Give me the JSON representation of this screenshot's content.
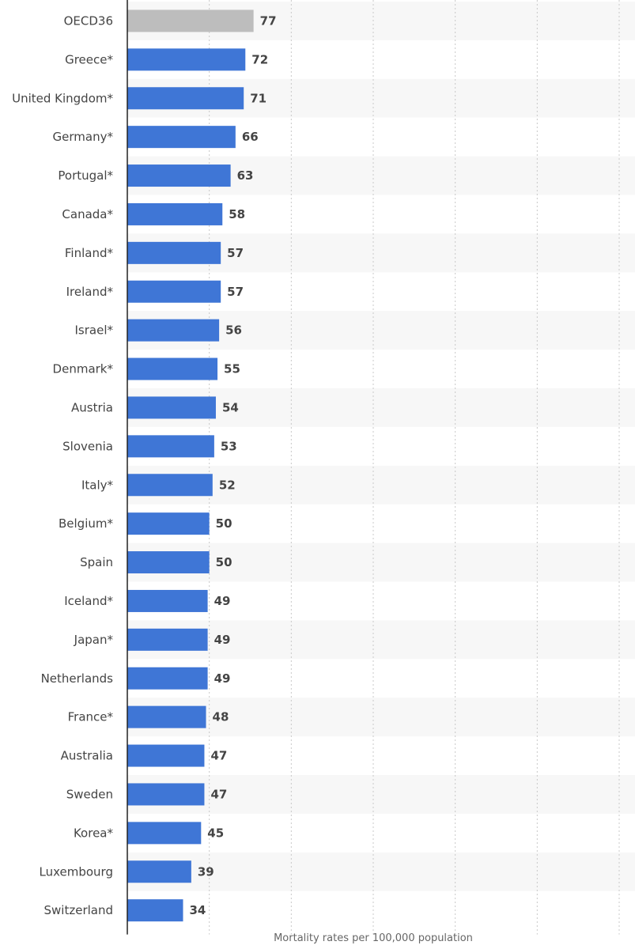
{
  "chart_data": {
    "type": "bar",
    "orientation": "horizontal",
    "categories": [
      "OECD36",
      "Greece*",
      "United Kingdom*",
      "Germany*",
      "Portugal*",
      "Canada*",
      "Finland*",
      "Ireland*",
      "Israel*",
      "Denmark*",
      "Austria",
      "Slovenia",
      "Italy*",
      "Belgium*",
      "Spain",
      "Iceland*",
      "Japan*",
      "Netherlands",
      "France*",
      "Australia",
      "Sweden",
      "Korea*",
      "Luxembourg",
      "Switzerland"
    ],
    "values": [
      77,
      72,
      71,
      66,
      63,
      58,
      57,
      57,
      56,
      55,
      54,
      53,
      52,
      50,
      50,
      49,
      49,
      49,
      48,
      47,
      47,
      45,
      39,
      34
    ],
    "highlight_category": "OECD36",
    "colors": {
      "bar": "#3f76d6",
      "highlight": "#bdbdbd",
      "band": "#f7f7f7",
      "grid": "#c8c8c8",
      "axis": "#222222"
    },
    "xlabel": "Mortality rates per 100,000 population",
    "xlim": [
      0,
      300
    ],
    "x_tick_step": 50,
    "grid": true,
    "legend": "none"
  }
}
